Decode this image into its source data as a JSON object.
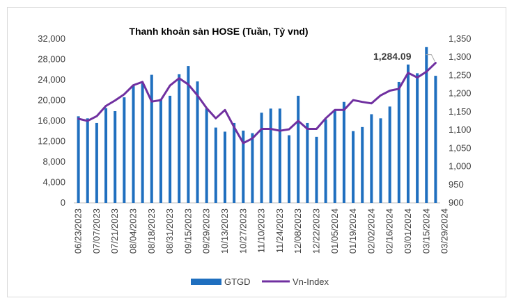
{
  "chart_data": {
    "type": "bar+line",
    "title": "Thanh khoản sàn HOSE (Tuần, Tỷ vnd)",
    "colors": {
      "bars": "#1f6fbf",
      "line": "#7030a0",
      "axis": "#bfbfbf",
      "text": "#404040"
    },
    "left_axis": {
      "min": 0,
      "max": 32000,
      "step": 4000,
      "tick_labels": [
        "0",
        "4,000",
        "8,000",
        "12,000",
        "16,000",
        "20,000",
        "24,000",
        "28,000",
        "32,000"
      ]
    },
    "right_axis": {
      "min": 900,
      "max": 1350,
      "step": 50,
      "tick_labels": [
        "900",
        "950",
        "1,000",
        "1,050",
        "1,100",
        "1,150",
        "1,200",
        "1,250",
        "1,300",
        "1,350"
      ]
    },
    "x_tick_labels": [
      "06/23/2023",
      "07/07/2023",
      "07/21/2023",
      "08/04/2023",
      "08/18/2023",
      "08/31/2023",
      "09/15/2023",
      "09/29/2023",
      "10/13/2023",
      "10/27/2023",
      "11/10/2023",
      "11/24/2023",
      "12/08/2023",
      "12/22/2023",
      "01/05/2024",
      "01/19/2024",
      "02/02/2024",
      "02/16/2024",
      "03/01/2024",
      "03/15/2024",
      "03/29/2024"
    ],
    "series": [
      {
        "name": "GTGD",
        "type": "bar",
        "axis": "left",
        "values": [
          16900,
          16500,
          15600,
          18500,
          17900,
          20600,
          22900,
          23300,
          25000,
          20300,
          20900,
          25100,
          26700,
          23700,
          18400,
          14700,
          13900,
          15600,
          14100,
          13600,
          17600,
          18400,
          18400,
          13200,
          20900,
          15600,
          12900,
          16300,
          18200,
          19700,
          14000,
          14800,
          17300,
          16500,
          18800,
          23600,
          27000,
          25300,
          30400,
          24800
        ]
      },
      {
        "name": "Vn-Index",
        "type": "line",
        "axis": "right",
        "values": [
          1131,
          1125,
          1138,
          1166,
          1181,
          1198,
          1223,
          1232,
          1178,
          1182,
          1222,
          1242,
          1225,
          1195,
          1160,
          1132,
          1155,
          1108,
          1064,
          1077,
          1103,
          1103,
          1098,
          1102,
          1125,
          1103,
          1103,
          1132,
          1155,
          1155,
          1182,
          1177,
          1173,
          1195,
          1208,
          1213,
          1257,
          1244,
          1260,
          1284
        ]
      }
    ],
    "annotation": {
      "text": "1,284.09"
    },
    "legend": {
      "position": "bottom",
      "items": [
        {
          "label": "GTGD"
        },
        {
          "label": "Vn-Index"
        }
      ]
    }
  }
}
